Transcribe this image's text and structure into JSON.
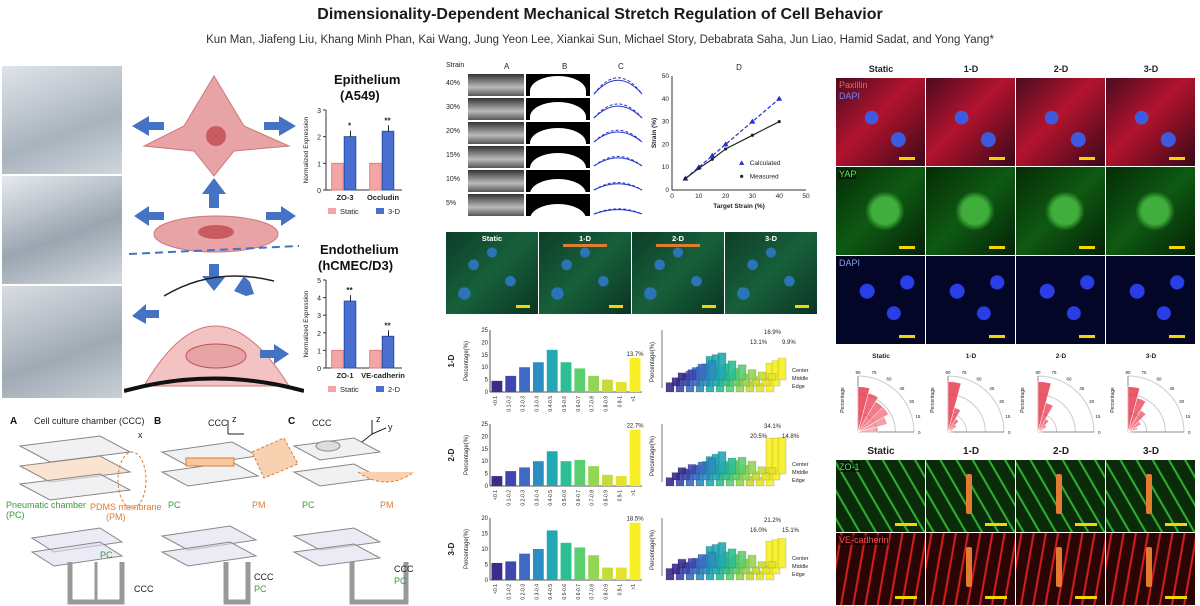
{
  "header": {
    "title": "Dimensionality-Dependent Mechanical Stretch Regulation of Cell Behavior",
    "authors": "Kun Man, Jiafeng Liu, Khang Minh Phan, Kai Wang, Jung Yeon Lee, Xiankai Sun, Michael Story, Debabrata Saha, Jun Liao, Hamid Sadat, and Yong Yang*"
  },
  "colors": {
    "static_bar": "#f4a5a5",
    "three_d_bar": "#4a6fd1",
    "arrow_blue": "#4472c4",
    "cell_pink": "#e8a3a6",
    "pm_orange": "#f4a460",
    "calc_line": "#2233cc"
  },
  "top_left": {
    "epithelium_title": "Epithelium",
    "epithelium_subtitle": "(A549)",
    "endothelium_title": "Endothelium",
    "endothelium_subtitle": "(hCMEC/D3)",
    "ylabel": "Normalized Expression",
    "legend_static": "Static",
    "legend_3d": "3-D",
    "legend_2d": "2-D"
  },
  "chart_data": [
    {
      "type": "bar",
      "title": "Epithelium (A549)",
      "ylabel": "Normalized Expression",
      "categories": [
        "ZO-3",
        "Occludin"
      ],
      "series": [
        {
          "name": "Static",
          "values": [
            1.0,
            1.0
          ]
        },
        {
          "name": "3-D",
          "values": [
            2.0,
            2.2
          ]
        }
      ],
      "significance": [
        "*",
        "**"
      ],
      "ylim": [
        0,
        3
      ],
      "yticks": [
        "0",
        "1",
        "2",
        "3"
      ]
    },
    {
      "type": "bar",
      "title": "Endothelium (hCMEC/D3)",
      "ylabel": "Normalized Expression",
      "categories": [
        "ZO-1",
        "VE-cadherin"
      ],
      "series": [
        {
          "name": "Static",
          "values": [
            1.0,
            1.0
          ]
        },
        {
          "name": "2-D",
          "values": [
            3.8,
            1.8
          ]
        }
      ],
      "significance": [
        "**",
        "**"
      ],
      "ylim": [
        0,
        5
      ],
      "yticks": [
        "0",
        "1",
        "2",
        "3",
        "4",
        "5"
      ]
    },
    {
      "type": "line",
      "title": "D",
      "xlabel": "Target Strain (%)",
      "ylabel": "Strain (%)",
      "xlim": [
        0,
        50
      ],
      "ylim": [
        0,
        50
      ],
      "xticks": [
        "0",
        "10",
        "20",
        "30",
        "40",
        "50"
      ],
      "yticks": [
        "0",
        "10",
        "20",
        "30",
        "40",
        "50"
      ],
      "series": [
        {
          "name": "Calculated",
          "x": [
            5,
            10,
            15,
            20,
            30,
            40
          ],
          "y": [
            5,
            10,
            15,
            20,
            30,
            40
          ]
        },
        {
          "name": "Measured",
          "x": [
            5,
            10,
            15,
            20,
            30,
            40
          ],
          "y": [
            5,
            9.5,
            13.5,
            18,
            24,
            30
          ]
        }
      ]
    },
    {
      "type": "bar",
      "ylabel": "Percentage(%)",
      "panel": "1-D",
      "categories": [
        "<0.1",
        "0.1-0.2",
        "0.2-0.3",
        "0.3-0.4",
        "0.4-0.5",
        "0.5-0.6",
        "0.6-0.7",
        "0.7-0.8",
        "0.8-0.9",
        "0.9-1",
        ">1"
      ],
      "values": [
        4.5,
        6.5,
        10,
        12,
        17,
        12,
        9.5,
        6.5,
        5,
        4,
        13.7
      ],
      "ylim": [
        0,
        25
      ],
      "yticks": [
        "0",
        "5",
        "10",
        "15",
        "20",
        "25"
      ],
      "annotation": "13.7%"
    },
    {
      "type": "bar",
      "ylabel": "Percentage(%)",
      "panel": "2-D",
      "categories": [
        "<0.1",
        "0.1-0.2",
        "0.2-0.3",
        "0.3-0.4",
        "0.4-0.5",
        "0.5-0.6",
        "0.6-0.7",
        "0.7-0.8",
        "0.8-0.9",
        "0.9-1",
        ">1"
      ],
      "values": [
        4,
        6,
        7.5,
        10,
        14,
        10,
        10.5,
        8,
        4.5,
        4,
        22.7
      ],
      "ylim": [
        0,
        25
      ],
      "yticks": [
        "0",
        "5",
        "10",
        "15",
        "20",
        "25"
      ],
      "annotation": "22.7%"
    },
    {
      "type": "bar",
      "ylabel": "Percentage(%)",
      "panel": "3-D",
      "categories": [
        "<0.1",
        "0.1-0.2",
        "0.2-0.3",
        "0.3-0.4",
        "0.4-0.5",
        "0.5-0.6",
        "0.6-0.7",
        "0.7-0.8",
        "0.8-0.9",
        "0.9-1",
        ">1"
      ],
      "values": [
        5.5,
        6,
        8.5,
        10,
        16,
        12,
        10.5,
        8,
        4,
        4,
        18.5
      ],
      "ylim": [
        0,
        20
      ],
      "yticks": [
        "0",
        "5",
        "10",
        "15",
        "20"
      ],
      "annotation": "18.5%"
    }
  ],
  "strain_panel": {
    "col_strain": "Strain",
    "col_a": "A",
    "col_b": "B",
    "col_c": "C",
    "rows": [
      "40%",
      "30%",
      "20%",
      "15%",
      "10%",
      "5%"
    ],
    "legend_calculated": "Calculated",
    "legend_measured": "Measured"
  },
  "mid_micrographs": {
    "labels": [
      "Static",
      "1-D",
      "2-D",
      "3-D"
    ]
  },
  "histogram3d": {
    "ylabel": "Percentage(%)",
    "axis_labels": [
      "Center",
      "Middle",
      "Edge"
    ],
    "panels": [
      {
        "annotations": [
          "16.9%",
          "13.1%",
          "9.9%"
        ]
      },
      {
        "annotations": [
          "34.1%",
          "20.5%",
          "14.8%"
        ]
      },
      {
        "annotations": [
          "21.2%",
          "16.0%",
          "15.1%"
        ]
      }
    ]
  },
  "right_top": {
    "col_labels": [
      "Static",
      "1-D",
      "2-D",
      "3-D"
    ],
    "row1_tag_a": "Paxillin",
    "row1_tag_b": "DAPI",
    "row2_tag": "YAP",
    "row3_tag": "DAPI"
  },
  "polar": {
    "labels": [
      "Static",
      "1-D",
      "2-D",
      "3-D"
    ],
    "ylabel": "Percentage",
    "ticks": [
      "90",
      "75",
      "60",
      "45",
      "30",
      "15",
      "0"
    ],
    "radial": [
      "0",
      "5",
      "10"
    ]
  },
  "right_bottom": {
    "col_labels": [
      "Static",
      "1-D",
      "2-D",
      "3-D"
    ],
    "row1_tag": "ZO-1",
    "row2_tag": "VE-cadherin"
  },
  "schematic": {
    "panel_a": "A",
    "panel_b": "B",
    "panel_c": "C",
    "ccc_label": "Cell culture chamber (CCC)",
    "x_label": "x",
    "pc_label": "Pneumatic chamber",
    "pc_label2": "(PC)",
    "pm_label": "PDMS membrane",
    "pm_label2": "(PM)",
    "ccc": "CCC",
    "pc": "PC",
    "pm": "PM",
    "z": "z",
    "y": "y"
  }
}
